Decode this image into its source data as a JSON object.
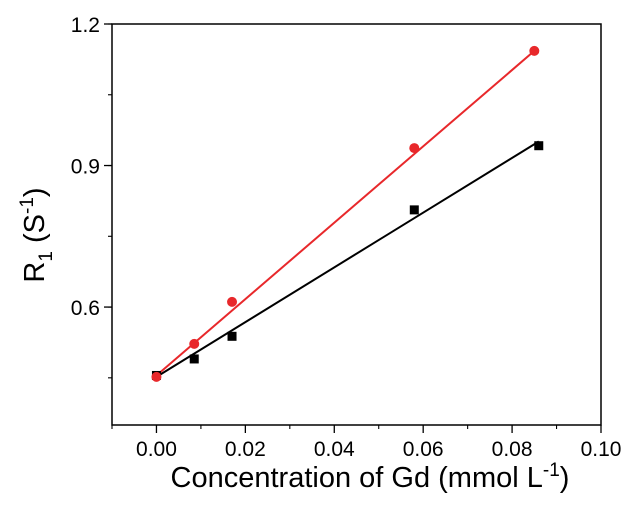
{
  "chart_data": {
    "type": "scatter",
    "title": "",
    "xlabel": "Concentration of Gd (mmol L",
    "xlabel_sup": "-1",
    "xlabel_tail": ")",
    "ylabel_main": "R",
    "ylabel_sub": "1",
    "ylabel_paren": " (S",
    "ylabel_sup": "-1",
    "ylabel_tail": ")",
    "xlim": [
      -0.01,
      0.1
    ],
    "ylim": [
      0.35,
      1.2
    ],
    "xticks": [
      0.0,
      0.02,
      0.04,
      0.06,
      0.08,
      0.1
    ],
    "xtick_labels": [
      "0.00",
      "0.02",
      "0.04",
      "0.06",
      "0.08",
      "0.10"
    ],
    "yticks": [
      0.6,
      0.9,
      1.2
    ],
    "ytick_labels": [
      "0.6",
      "0.9",
      "1.2"
    ],
    "grid": false,
    "series": [
      {
        "marker": "square",
        "color": "#000000",
        "x": [
          0.0,
          0.0085,
          0.017,
          0.058,
          0.086
        ],
        "y": [
          0.455,
          0.49,
          0.538,
          0.806,
          0.942
        ],
        "fit": {
          "x": [
            0.0,
            0.086
          ],
          "y": [
            0.452,
            0.951
          ]
        }
      },
      {
        "marker": "circle",
        "color": "#e8282b",
        "x": [
          0.0,
          0.0085,
          0.017,
          0.058,
          0.085
        ],
        "y": [
          0.452,
          0.522,
          0.611,
          0.937,
          1.143
        ],
        "fit": {
          "x": [
            0.0,
            0.085
          ],
          "y": [
            0.455,
            1.143
          ]
        }
      }
    ]
  }
}
